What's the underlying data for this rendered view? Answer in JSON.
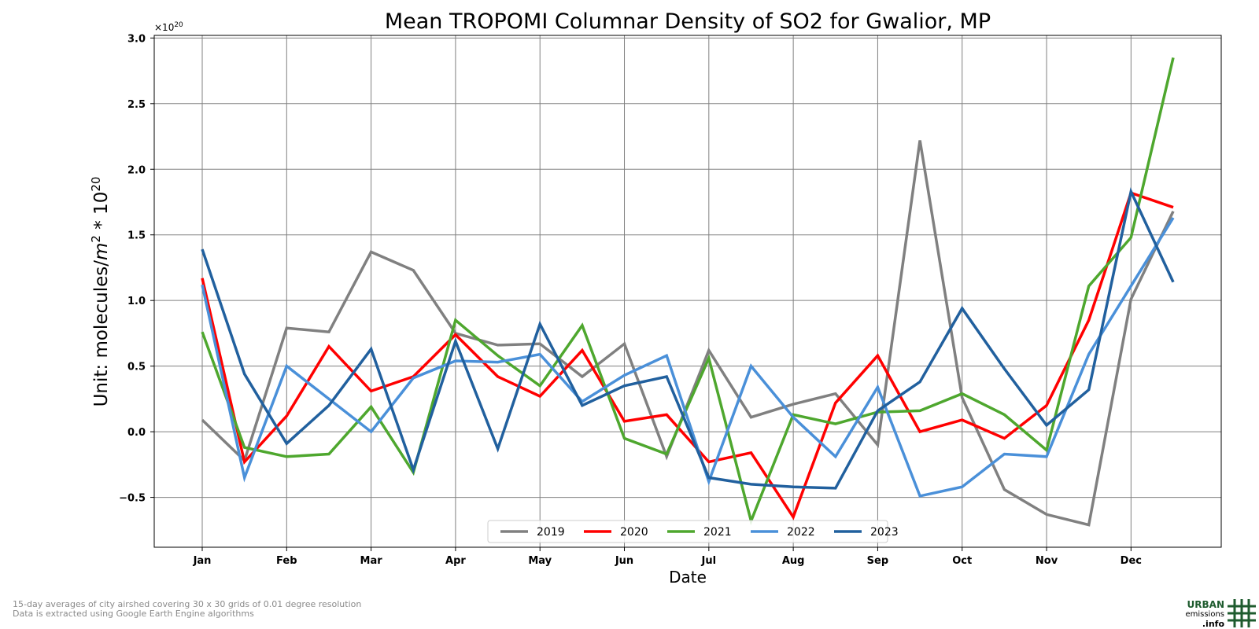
{
  "chart_data": {
    "type": "line",
    "title": "Mean TROPOMI Columnar Density of SO2 for Gwalior, MP",
    "xlabel": "Date",
    "ylabel_text": "Unit: molecules/",
    "ylabel_unit": "m",
    "ylabel_exp": "2",
    "ylabel_mult": " * 10",
    "ylabel_mult_exp": "20",
    "y_offset_base": "×10",
    "y_offset_exp": "20",
    "y_tick_labels": [
      "−0.5",
      "0.0",
      "0.5",
      "1.0",
      "1.5",
      "2.0",
      "2.5",
      "3.0"
    ],
    "ylim": [
      -0.88,
      3.02
    ],
    "x_tick_labels": [
      "Jan",
      "Feb",
      "Mar",
      "Apr",
      "May",
      "Jun",
      "Jul",
      "Aug",
      "Sep",
      "Oct",
      "Nov",
      "Dec"
    ],
    "x": [
      "Jan 1",
      "Jan 16",
      "Feb 1",
      "Feb 16",
      "Mar 1",
      "Mar 16",
      "Apr 1",
      "Apr 16",
      "May 1",
      "May 16",
      "Jun 1",
      "Jun 16",
      "Jul 1",
      "Jul 16",
      "Aug 1",
      "Aug 16",
      "Sep 1",
      "Sep 16",
      "Oct 1",
      "Oct 16",
      "Nov 1",
      "Nov 16",
      "Dec 1",
      "Dec 16"
    ],
    "grid": true,
    "legend_position": "bottom-center",
    "series": [
      {
        "name": "2019",
        "color": "#808080",
        "values": [
          0.09,
          -0.22,
          0.79,
          0.76,
          1.37,
          1.23,
          0.75,
          0.66,
          0.67,
          0.42,
          0.67,
          -0.19,
          0.62,
          0.11,
          0.21,
          0.29,
          -0.1,
          2.22,
          0.26,
          -0.44,
          -0.63,
          -0.71,
          1.01,
          1.68
        ]
      },
      {
        "name": "2020",
        "color": "#ff0000",
        "values": [
          1.17,
          -0.23,
          0.12,
          0.65,
          0.31,
          0.42,
          0.74,
          0.42,
          0.27,
          0.62,
          0.08,
          0.13,
          -0.23,
          -0.16,
          -0.65,
          0.22,
          0.58,
          0.0,
          0.09,
          -0.05,
          0.2,
          0.85,
          1.82,
          1.71
        ]
      },
      {
        "name": "2021",
        "color": "#4ea72e",
        "values": [
          0.76,
          -0.12,
          -0.19,
          -0.17,
          0.19,
          -0.31,
          0.85,
          0.58,
          0.35,
          0.81,
          -0.05,
          -0.17,
          0.56,
          -0.68,
          0.13,
          0.06,
          0.15,
          0.16,
          0.29,
          0.13,
          -0.14,
          1.11,
          1.48,
          2.85
        ]
      },
      {
        "name": "2022",
        "color": "#4a90d9",
        "values": [
          1.12,
          -0.35,
          0.5,
          0.25,
          0.0,
          0.41,
          0.54,
          0.53,
          0.59,
          0.23,
          0.43,
          0.58,
          -0.38,
          0.5,
          0.11,
          -0.19,
          0.34,
          -0.49,
          -0.42,
          -0.17,
          -0.19,
          0.59,
          1.11,
          1.63
        ]
      },
      {
        "name": "2023",
        "color": "#21609e",
        "values": [
          1.39,
          0.44,
          -0.09,
          0.2,
          0.63,
          -0.29,
          0.69,
          -0.13,
          0.82,
          0.2,
          0.35,
          0.42,
          -0.35,
          -0.4,
          -0.42,
          -0.43,
          0.16,
          0.38,
          0.94,
          0.48,
          0.05,
          0.32,
          1.83,
          1.14
        ]
      }
    ]
  },
  "footnotes": {
    "line1": "15-day averages of city airshed covering 30 x 30 grids of 0.01 degree resolution",
    "line2": "Data is extracted using Google Earth Engine algorithms"
  },
  "logo": {
    "word1": "URBAN",
    "word2": "emissions",
    "word3": ".info",
    "color": "#1e5b2e"
  }
}
